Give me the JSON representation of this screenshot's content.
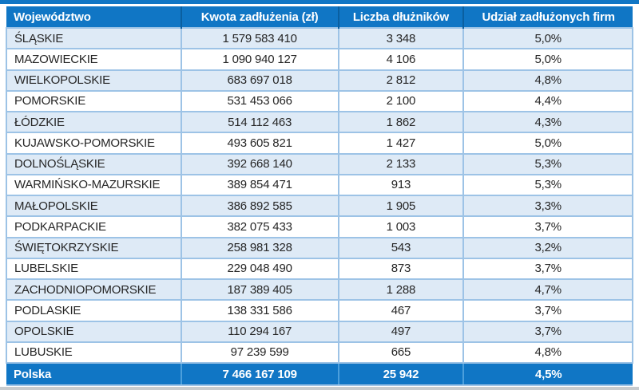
{
  "chart_data": {
    "type": "table",
    "title": "",
    "columns": [
      "Województwo",
      "Kwota zadłużenia (zł)",
      "Liczba dłużników",
      "Udział zadłużonych firm"
    ],
    "column_keys": [
      "wojewodztwo",
      "kwota-zadluzenia",
      "liczba-dluznikow",
      "udzial-zadluzonych-firm"
    ],
    "rows": [
      [
        "ŚLĄSKIE",
        "1 579 583 410",
        "3 348",
        "5,0%"
      ],
      [
        "MAZOWIECKIE",
        "1 090 940 127",
        "4 106",
        "5,0%"
      ],
      [
        "WIELKOPOLSKIE",
        "683 697 018",
        "2 812",
        "4,8%"
      ],
      [
        "POMORSKIE",
        "531 453 066",
        "2 100",
        "4,4%"
      ],
      [
        "ŁÓDZKIE",
        "514 112 463",
        "1 862",
        "4,3%"
      ],
      [
        "KUJAWSKO-POMORSKIE",
        "493 605 821",
        "1 427",
        "5,0%"
      ],
      [
        "DOLNOŚLĄSKIE",
        "392 668 140",
        "2 133",
        "5,3%"
      ],
      [
        "WARMIŃSKO-MAZURSKIE",
        "389 854 471",
        "913",
        "5,3%"
      ],
      [
        "MAŁOPOLSKIE",
        "386 892 585",
        "1 905",
        "3,3%"
      ],
      [
        "PODKARPACKIE",
        "382 075 433",
        "1 003",
        "3,7%"
      ],
      [
        "ŚWIĘTOKRZYSKIE",
        "258 981 328",
        "543",
        "3,2%"
      ],
      [
        "LUBELSKIE",
        "229 048 490",
        "873",
        "3,7%"
      ],
      [
        "ZACHODNIOPOMORSKIE",
        "187 389 405",
        "1 288",
        "4,7%"
      ],
      [
        "PODLASKIE",
        "138 331 586",
        "467",
        "3,7%"
      ],
      [
        "OPOLSKIE",
        "110 294 167",
        "497",
        "3,7%"
      ],
      [
        "LUBUSKIE",
        "97 239 599",
        "665",
        "4,8%"
      ]
    ],
    "footer": [
      "Polska",
      "7 466 167 109",
      "25 942",
      "4,5%"
    ]
  },
  "colors": {
    "header_background": "#1076C5",
    "footer_background": "#1076C5",
    "row_band": "#DEEAF6",
    "row_plain": "#FFFFFF",
    "grid_border": "#9DC3E6",
    "header_divider": "#0A5FA0",
    "footer_divider": "#4C9FDC",
    "top_bar": "#1076C5",
    "bottom_bar": "#C7CBCE",
    "body_text": "#262626",
    "header_text": "#FFFFFF"
  }
}
